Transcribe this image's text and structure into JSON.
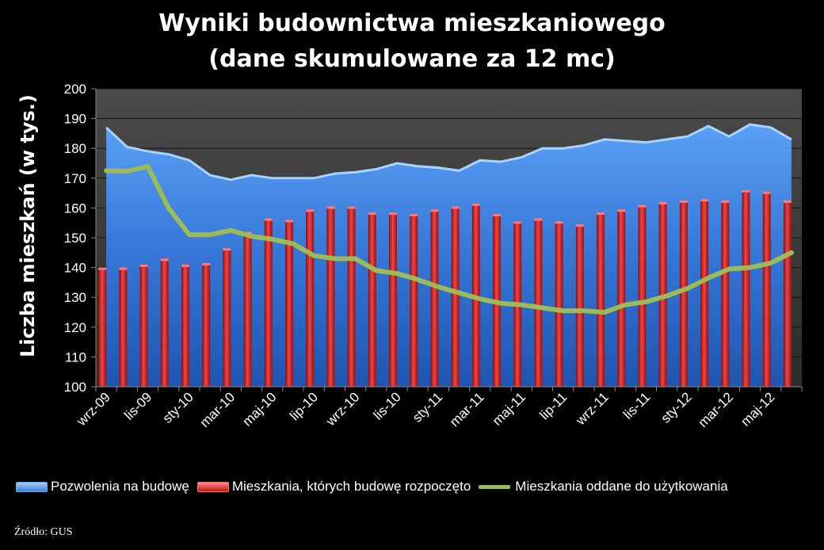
{
  "chart_data": {
    "type": "combo",
    "title": "Wyniki budownictwa mieszkaniowego",
    "subtitle": "(dane skumulowane za 12 mc)",
    "ylabel": "Liczba mieszkań (w tys.)",
    "ylim": [
      100,
      200
    ],
    "yticks": [
      100,
      110,
      120,
      130,
      140,
      150,
      160,
      170,
      180,
      190,
      200
    ],
    "x": [
      "wrz-09",
      "paź-09",
      "lis-09",
      "gru-09",
      "sty-10",
      "lut-10",
      "mar-10",
      "kwi-10",
      "maj-10",
      "cze-10",
      "lip-10",
      "sie-10",
      "wrz-10",
      "paź-10",
      "lis-10",
      "gru-10",
      "sty-11",
      "lut-11",
      "mar-11",
      "kwi-11",
      "maj-11",
      "cze-11",
      "lip-11",
      "sie-11",
      "wrz-11",
      "paź-11",
      "lis-11",
      "gru-11",
      "sty-12",
      "lut-12",
      "mar-12",
      "kwi-12",
      "maj-12",
      "cze-12"
    ],
    "xtick_labels": [
      "wrz-09",
      "lis-09",
      "sty-10",
      "mar-10",
      "maj-10",
      "lip-10",
      "wrz-10",
      "lis-10",
      "sty-11",
      "mar-11",
      "maj-11",
      "lip-11",
      "wrz-11",
      "lis-11",
      "sty-12",
      "mar-12",
      "maj-12"
    ],
    "series": [
      {
        "name": "Pozwolenia na budowę",
        "kind": "area",
        "color": "#3d7fd8",
        "values": [
          187,
          180.5,
          179,
          178,
          176,
          171,
          169.5,
          171,
          170,
          170,
          170,
          171.5,
          172,
          173,
          175,
          174,
          173.5,
          172.5,
          176,
          175.5,
          177,
          180,
          180,
          181,
          183,
          182.5,
          182,
          183,
          184,
          187.5,
          184,
          188,
          187,
          183
        ]
      },
      {
        "name": "Mieszkania, których budowę rozpoczęto",
        "kind": "bar",
        "color": "#d42a2a",
        "values": [
          140,
          140,
          141,
          143,
          141,
          141.5,
          146.5,
          152,
          156.5,
          156,
          159.5,
          160.5,
          160.5,
          158.5,
          158.5,
          158,
          159.5,
          160.5,
          161.5,
          158,
          155.5,
          156.5,
          155.5,
          154.5,
          158.5,
          159.5,
          161,
          162,
          162.5,
          163,
          162.5,
          166,
          165.5,
          162.5
        ]
      },
      {
        "name": "Mieszkania oddane do użytkowania",
        "kind": "line",
        "color": "#9bbb59",
        "values": [
          172.5,
          172.3,
          174,
          160,
          151,
          151,
          152.5,
          150.5,
          149.5,
          148,
          144,
          143,
          143,
          139,
          138,
          136,
          133.5,
          131.5,
          129.5,
          128,
          127.5,
          126.5,
          125.5,
          125.5,
          125,
          127.5,
          128.5,
          130.5,
          133,
          136.5,
          139.5,
          140,
          141.5,
          145
        ]
      }
    ],
    "legend_position": "bottom",
    "grid": true
  },
  "source": "Źródło: GUS"
}
